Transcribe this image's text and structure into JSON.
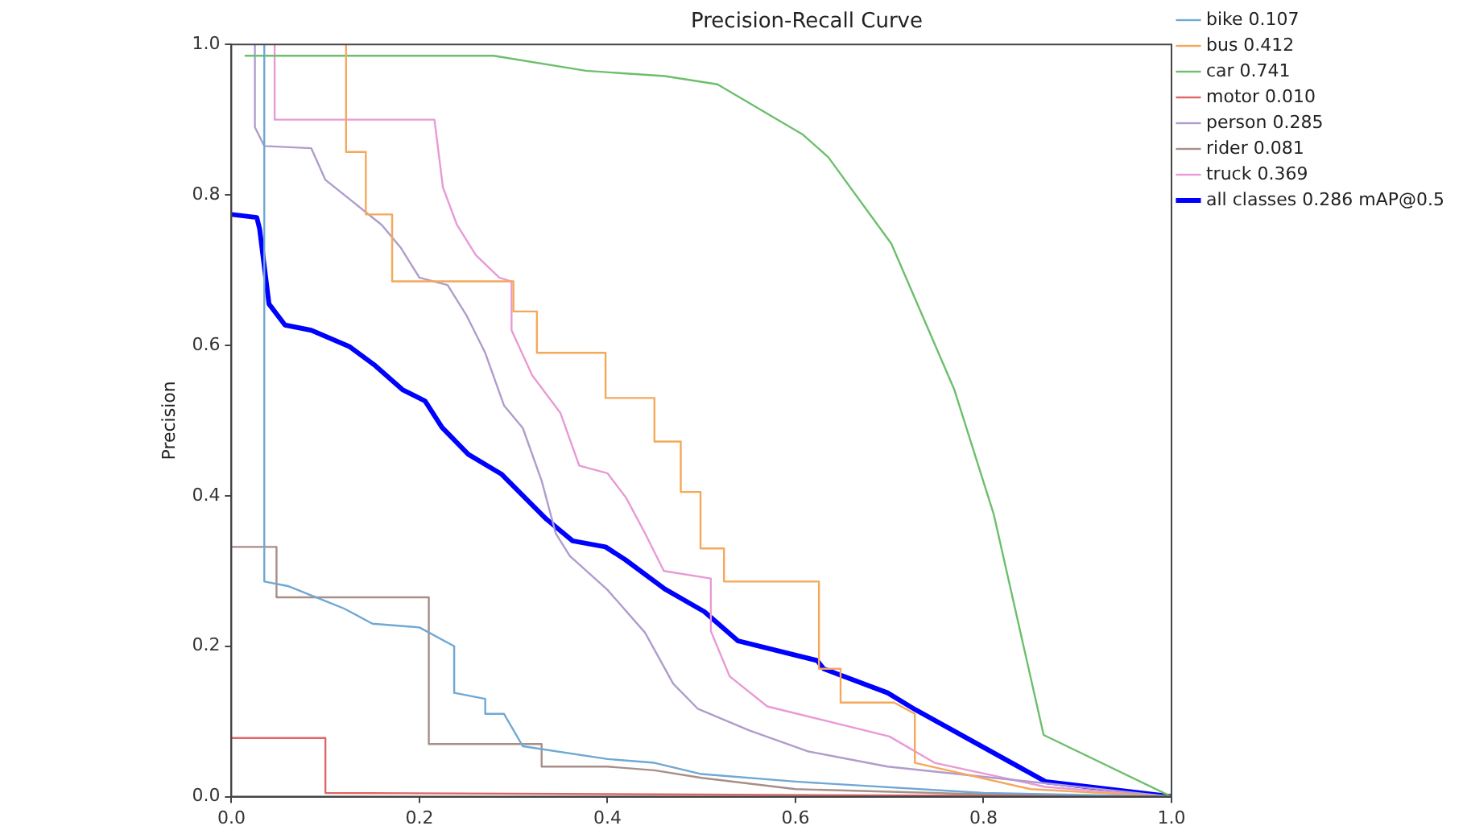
{
  "chart_data": {
    "type": "line",
    "title": "Precision-Recall Curve",
    "ylabel": "Precision",
    "xlim": [
      0,
      1
    ],
    "ylim": [
      0,
      1
    ],
    "xticks": [
      {
        "value": 0,
        "label": "0.0"
      },
      0.2,
      0.4,
      0.6,
      0.8,
      {
        "value": 1,
        "label": "1.0"
      }
    ],
    "yticks": [
      {
        "value": 0,
        "label": "0.0"
      },
      0.2,
      0.4,
      0.6,
      0.8,
      {
        "value": 1,
        "label": "1.0"
      }
    ],
    "grid": false,
    "legend": "top right",
    "marker": "none",
    "line_style": "solid",
    "series": [
      {
        "name": "bike 0.107",
        "color": "#6fa8d4",
        "x": [
          0.035,
          0.035,
          0.06,
          0.1,
          0.12,
          0.15,
          0.2,
          0.237,
          0.237,
          0.27,
          0.27,
          0.29,
          0.31,
          0.4,
          0.45,
          0.5,
          0.6,
          0.8,
          1.0
        ],
        "values": [
          1.0,
          0.286,
          0.28,
          0.26,
          0.25,
          0.23,
          0.225,
          0.2,
          0.138,
          0.13,
          0.11,
          0.11,
          0.067,
          0.05,
          0.045,
          0.03,
          0.02,
          0.005,
          0.0
        ]
      },
      {
        "name": "bus 0.412",
        "color": "#f5a85a",
        "x": [
          0.122,
          0.122,
          0.143,
          0.143,
          0.171,
          0.171,
          0.3,
          0.3,
          0.325,
          0.325,
          0.398,
          0.398,
          0.45,
          0.45,
          0.478,
          0.478,
          0.499,
          0.499,
          0.524,
          0.524,
          0.625,
          0.625,
          0.648,
          0.648,
          0.705,
          0.727,
          0.727,
          0.85,
          1.0
        ],
        "values": [
          1.0,
          0.857,
          0.857,
          0.774,
          0.774,
          0.685,
          0.685,
          0.645,
          0.645,
          0.59,
          0.59,
          0.53,
          0.53,
          0.472,
          0.472,
          0.405,
          0.405,
          0.33,
          0.33,
          0.286,
          0.286,
          0.17,
          0.17,
          0.125,
          0.125,
          0.11,
          0.045,
          0.01,
          0.0
        ]
      },
      {
        "name": "car 0.741",
        "color": "#6cbf6c",
        "x": [
          0.015,
          0.279,
          0.377,
          0.461,
          0.517,
          0.608,
          0.635,
          0.702,
          0.769,
          0.811,
          0.864,
          1.0
        ],
        "values": [
          0.985,
          0.985,
          0.965,
          0.958,
          0.947,
          0.88,
          0.85,
          0.735,
          0.541,
          0.375,
          0.082,
          0.0
        ]
      },
      {
        "name": "motor 0.010",
        "color": "#e06666",
        "x": [
          0.0,
          0.1,
          0.1,
          1.0
        ],
        "values": [
          0.078,
          0.078,
          0.005,
          0.0
        ]
      },
      {
        "name": "person 0.285",
        "color": "#b09ccc",
        "x": [
          0.025,
          0.025,
          0.035,
          0.085,
          0.1,
          0.13,
          0.16,
          0.18,
          0.2,
          0.23,
          0.25,
          0.27,
          0.29,
          0.31,
          0.33,
          0.345,
          0.36,
          0.4,
          0.44,
          0.47,
          0.496,
          0.551,
          0.614,
          0.698,
          0.811,
          1.0
        ],
        "values": [
          1.0,
          0.89,
          0.865,
          0.862,
          0.82,
          0.79,
          0.76,
          0.73,
          0.69,
          0.68,
          0.64,
          0.59,
          0.52,
          0.49,
          0.42,
          0.35,
          0.32,
          0.275,
          0.218,
          0.15,
          0.117,
          0.088,
          0.06,
          0.04,
          0.025,
          0.0
        ]
      },
      {
        "name": "rider 0.081",
        "color": "#a88e88",
        "x": [
          0.0,
          0.048,
          0.048,
          0.21,
          0.21,
          0.33,
          0.33,
          0.4,
          0.45,
          0.5,
          0.6,
          0.8,
          1.0
        ],
        "values": [
          0.332,
          0.332,
          0.265,
          0.265,
          0.07,
          0.07,
          0.04,
          0.04,
          0.035,
          0.025,
          0.01,
          0.003,
          0.0
        ]
      },
      {
        "name": "truck 0.369",
        "color": "#e89ad6",
        "x": [
          0.046,
          0.046,
          0.216,
          0.225,
          0.24,
          0.26,
          0.285,
          0.298,
          0.298,
          0.32,
          0.35,
          0.37,
          0.4,
          0.42,
          0.44,
          0.46,
          0.51,
          0.51,
          0.53,
          0.57,
          0.635,
          0.7,
          0.748,
          0.866,
          1.0
        ],
        "values": [
          1.0,
          0.9,
          0.9,
          0.81,
          0.76,
          0.72,
          0.69,
          0.685,
          0.62,
          0.56,
          0.51,
          0.44,
          0.43,
          0.397,
          0.35,
          0.3,
          0.29,
          0.22,
          0.16,
          0.12,
          0.1,
          0.08,
          0.045,
          0.013,
          0.0
        ]
      },
      {
        "name": "all classes 0.286 mAP@0.5",
        "color": "#0000ff",
        "x": [
          0.0,
          0.027,
          0.03,
          0.04,
          0.057,
          0.085,
          0.126,
          0.153,
          0.182,
          0.206,
          0.224,
          0.252,
          0.287,
          0.335,
          0.363,
          0.398,
          0.419,
          0.461,
          0.503,
          0.539,
          0.623,
          0.63,
          0.698,
          0.727,
          0.866,
          1.0
        ],
        "values": [
          0.774,
          0.77,
          0.755,
          0.655,
          0.627,
          0.62,
          0.598,
          0.573,
          0.541,
          0.526,
          0.491,
          0.455,
          0.429,
          0.369,
          0.34,
          0.332,
          0.315,
          0.276,
          0.246,
          0.207,
          0.181,
          0.17,
          0.138,
          0.116,
          0.02,
          0.0
        ]
      }
    ]
  }
}
